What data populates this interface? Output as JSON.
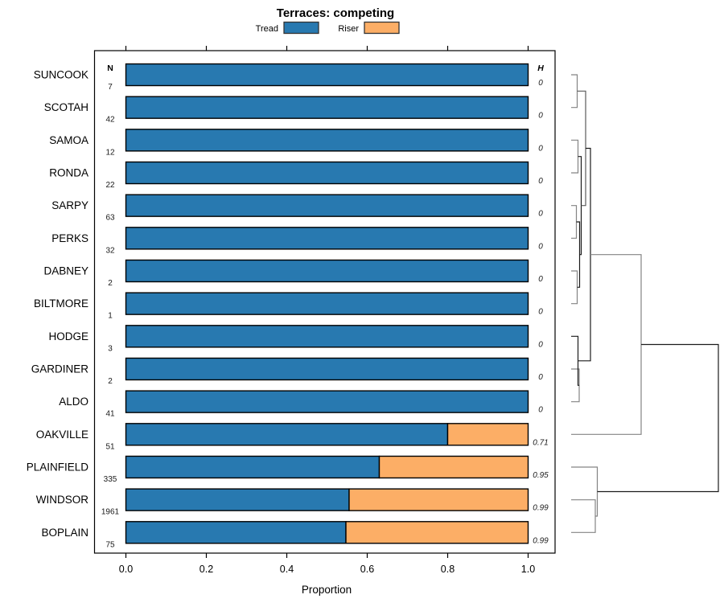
{
  "title": "Terraces: competing",
  "legend": {
    "items": [
      {
        "label": "Tread",
        "color": "#2879b0"
      },
      {
        "label": "Riser",
        "color": "#fcae66"
      }
    ]
  },
  "columns": {
    "n_header": "N",
    "h_header": "H"
  },
  "axis": {
    "label": "Proportion",
    "tick_labels": [
      "0.0",
      "0.2",
      "0.4",
      "0.6",
      "0.8",
      "1.0"
    ],
    "tick_values": [
      0,
      0.2,
      0.4,
      0.6,
      0.8,
      1.0
    ]
  },
  "chart_data": {
    "type": "bar",
    "orientation": "horizontal-stacked",
    "title": "Terraces: competing",
    "xlabel": "Proportion",
    "xlim": [
      0,
      1
    ],
    "grid": false,
    "legend_position": "top",
    "categories": [
      "SUNCOOK",
      "SCOTAH",
      "SAMOA",
      "RONDA",
      "SARPY",
      "PERKS",
      "DABNEY",
      "BILTMORE",
      "HODGE",
      "GARDINER",
      "ALDO",
      "OAKVILLE",
      "PLAINFIELD",
      "WINDSOR",
      "BOPLAIN"
    ],
    "n_values": [
      7,
      42,
      12,
      22,
      63,
      32,
      2,
      1,
      3,
      2,
      41,
      51,
      335,
      1961,
      75
    ],
    "h_values": [
      "0",
      "0",
      "0",
      "0",
      "0",
      "0",
      "0",
      "0",
      "0",
      "0",
      "0",
      "0.71",
      "0.95",
      "0.99",
      "0.99"
    ],
    "series": [
      {
        "name": "Tread",
        "color": "#2879b0",
        "values": [
          1,
          1,
          1,
          1,
          1,
          1,
          1,
          1,
          1,
          1,
          1,
          0.8,
          0.63,
          0.555,
          0.547
        ]
      },
      {
        "name": "Riser",
        "color": "#fcae66",
        "values": [
          0,
          0,
          0,
          0,
          0,
          0,
          0,
          0,
          0,
          0,
          0,
          0.2,
          0.37,
          0.445,
          0.453
        ]
      }
    ]
  },
  "dendrogram": {
    "colors": {
      "light": "#848484",
      "mid": "#5a5a5a",
      "dark": "#1b1b1b"
    },
    "polylines": [
      {
        "pts": [
          [
            710,
            93
          ],
          [
            717.5,
            93
          ],
          [
            717.5,
            133.7
          ],
          [
            710,
            133.7
          ]
        ],
        "c": "light"
      },
      {
        "pts": [
          [
            710,
            174.3
          ],
          [
            718.5,
            174.3
          ],
          [
            718.5,
            215
          ],
          [
            710,
            215
          ]
        ],
        "c": "light"
      },
      {
        "pts": [
          [
            710,
            255.7
          ],
          [
            716.5,
            255.7
          ],
          [
            716.5,
            296.3
          ],
          [
            710,
            296.3
          ]
        ],
        "c": "light"
      },
      {
        "pts": [
          [
            710,
            337
          ],
          [
            717.5,
            337
          ],
          [
            717.5,
            377.7
          ],
          [
            710,
            377.7
          ]
        ],
        "c": "light"
      },
      {
        "pts": [
          [
            710,
            459
          ],
          [
            720,
            459
          ],
          [
            720,
            499.7
          ],
          [
            710,
            499.7
          ]
        ],
        "c": "light"
      },
      {
        "pts": [
          [
            710,
            418.3
          ],
          [
            718.5,
            418.3
          ],
          [
            718.5,
            479.3
          ],
          [
            720,
            479.3
          ]
        ],
        "c": "dark"
      },
      {
        "pts": [
          [
            716.5,
            276
          ],
          [
            720.5,
            276
          ],
          [
            720.5,
            357.3
          ],
          [
            717.5,
            357.3
          ]
        ],
        "c": "dark"
      },
      {
        "pts": [
          [
            718.5,
            194.7
          ],
          [
            722.5,
            194.7
          ],
          [
            722.5,
            316.7
          ],
          [
            720.5,
            316.7
          ]
        ],
        "c": "dark"
      },
      {
        "pts": [
          [
            717.5,
            113.3
          ],
          [
            728,
            113.3
          ],
          [
            728,
            255.7
          ],
          [
            722.5,
            255.7
          ]
        ],
        "c": "mid"
      },
      {
        "pts": [
          [
            728,
            184.5
          ],
          [
            734,
            184.5
          ],
          [
            734,
            448.8
          ],
          [
            718.5,
            448.8
          ]
        ],
        "c": "dark"
      },
      {
        "pts": [
          [
            734,
            316.7
          ],
          [
            797,
            316.7
          ],
          [
            797,
            540.3
          ],
          [
            710,
            540.3
          ]
        ],
        "c": "light"
      },
      {
        "pts": [
          [
            710,
            621.7
          ],
          [
            740,
            621.7
          ],
          [
            740,
            662.3
          ],
          [
            710,
            662.3
          ]
        ],
        "c": "light"
      },
      {
        "pts": [
          [
            710,
            581
          ],
          [
            742.5,
            581
          ],
          [
            742.5,
            642
          ],
          [
            740,
            642
          ]
        ],
        "c": "light"
      },
      {
        "pts": [
          [
            797,
            428.5
          ],
          [
            893,
            428.5
          ],
          [
            893,
            611.5
          ],
          [
            742.5,
            611.5
          ]
        ],
        "c": "dark"
      }
    ]
  }
}
